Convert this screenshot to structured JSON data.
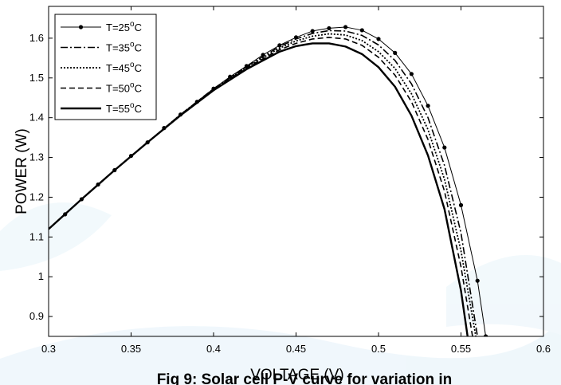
{
  "chart_data": {
    "type": "line",
    "title": "",
    "xlabel": "VOLTAGE (V)",
    "ylabel": "POWER (W)",
    "xlim": [
      0.3,
      0.6
    ],
    "ylim": [
      0.85,
      1.68
    ],
    "xticks": [
      "0.3",
      "0.35",
      "0.4",
      "0.45",
      "0.5",
      "0.55",
      "0.6"
    ],
    "yticks": [
      "0.9",
      "1",
      "1.1",
      "1.2",
      "1.3",
      "1.4",
      "1.5",
      "1.6"
    ],
    "grid": false,
    "legend_position": "top-left",
    "series": [
      {
        "name": "T=25oC",
        "style": "solid-marker",
        "x": [
          0.3,
          0.31,
          0.32,
          0.33,
          0.34,
          0.35,
          0.36,
          0.37,
          0.38,
          0.39,
          0.4,
          0.41,
          0.42,
          0.43,
          0.44,
          0.45,
          0.46,
          0.47,
          0.48,
          0.49,
          0.5,
          0.51,
          0.52,
          0.53,
          0.54,
          0.55,
          0.56,
          0.565
        ],
        "y": [
          1.12,
          1.157,
          1.195,
          1.232,
          1.268,
          1.304,
          1.338,
          1.374,
          1.408,
          1.44,
          1.473,
          1.503,
          1.53,
          1.558,
          1.582,
          1.602,
          1.618,
          1.625,
          1.628,
          1.62,
          1.598,
          1.563,
          1.51,
          1.43,
          1.325,
          1.18,
          0.99,
          0.85
        ]
      },
      {
        "name": "T=35oC",
        "style": "dashdot",
        "x": [
          0.3,
          0.32,
          0.34,
          0.36,
          0.38,
          0.4,
          0.42,
          0.44,
          0.45,
          0.46,
          0.47,
          0.48,
          0.49,
          0.5,
          0.51,
          0.52,
          0.53,
          0.54,
          0.55,
          0.56
        ],
        "y": [
          1.12,
          1.195,
          1.268,
          1.338,
          1.408,
          1.473,
          1.529,
          1.579,
          1.598,
          1.612,
          1.619,
          1.618,
          1.607,
          1.583,
          1.544,
          1.485,
          1.4,
          1.28,
          1.11,
          0.85
        ]
      },
      {
        "name": "T=45oC",
        "style": "dotted",
        "x": [
          0.3,
          0.32,
          0.34,
          0.36,
          0.38,
          0.4,
          0.42,
          0.44,
          0.45,
          0.46,
          0.47,
          0.48,
          0.49,
          0.5,
          0.51,
          0.52,
          0.53,
          0.54,
          0.55,
          0.559
        ],
        "y": [
          1.12,
          1.195,
          1.268,
          1.338,
          1.408,
          1.472,
          1.527,
          1.575,
          1.593,
          1.605,
          1.611,
          1.608,
          1.594,
          1.566,
          1.524,
          1.46,
          1.37,
          1.245,
          1.065,
          0.85
        ]
      },
      {
        "name": "T=50oC",
        "style": "dashed",
        "x": [
          0.3,
          0.32,
          0.34,
          0.36,
          0.38,
          0.4,
          0.42,
          0.44,
          0.45,
          0.46,
          0.47,
          0.48,
          0.49,
          0.5,
          0.51,
          0.52,
          0.53,
          0.54,
          0.55,
          0.557
        ],
        "y": [
          1.12,
          1.195,
          1.268,
          1.338,
          1.407,
          1.471,
          1.525,
          1.571,
          1.587,
          1.598,
          1.602,
          1.598,
          1.582,
          1.552,
          1.507,
          1.44,
          1.345,
          1.215,
          1.025,
          0.85
        ]
      },
      {
        "name": "T=55oC",
        "style": "solid-thick",
        "x": [
          0.3,
          0.32,
          0.34,
          0.36,
          0.38,
          0.4,
          0.42,
          0.44,
          0.45,
          0.46,
          0.47,
          0.48,
          0.49,
          0.5,
          0.51,
          0.52,
          0.53,
          0.54,
          0.55,
          0.554
        ],
        "y": [
          1.12,
          1.195,
          1.268,
          1.338,
          1.406,
          1.469,
          1.522,
          1.566,
          1.58,
          1.587,
          1.587,
          1.579,
          1.56,
          1.527,
          1.478,
          1.405,
          1.305,
          1.17,
          0.965,
          0.85
        ]
      }
    ],
    "legend_entries": [
      {
        "base": "T=25",
        "sup": "o",
        "unit": "C"
      },
      {
        "base": "T=35",
        "sup": "o",
        "unit": "C"
      },
      {
        "base": "T=45",
        "sup": "o",
        "unit": "C"
      },
      {
        "base": "T=50",
        "sup": "o",
        "unit": "C"
      },
      {
        "base": "T=55",
        "sup": "o",
        "unit": "C"
      }
    ]
  },
  "caption": "Fig 9: Solar cell P-V curve for variation in",
  "colors": {
    "line": "#000000",
    "background": "#ffffff",
    "watermark": "#d6ecf7"
  }
}
